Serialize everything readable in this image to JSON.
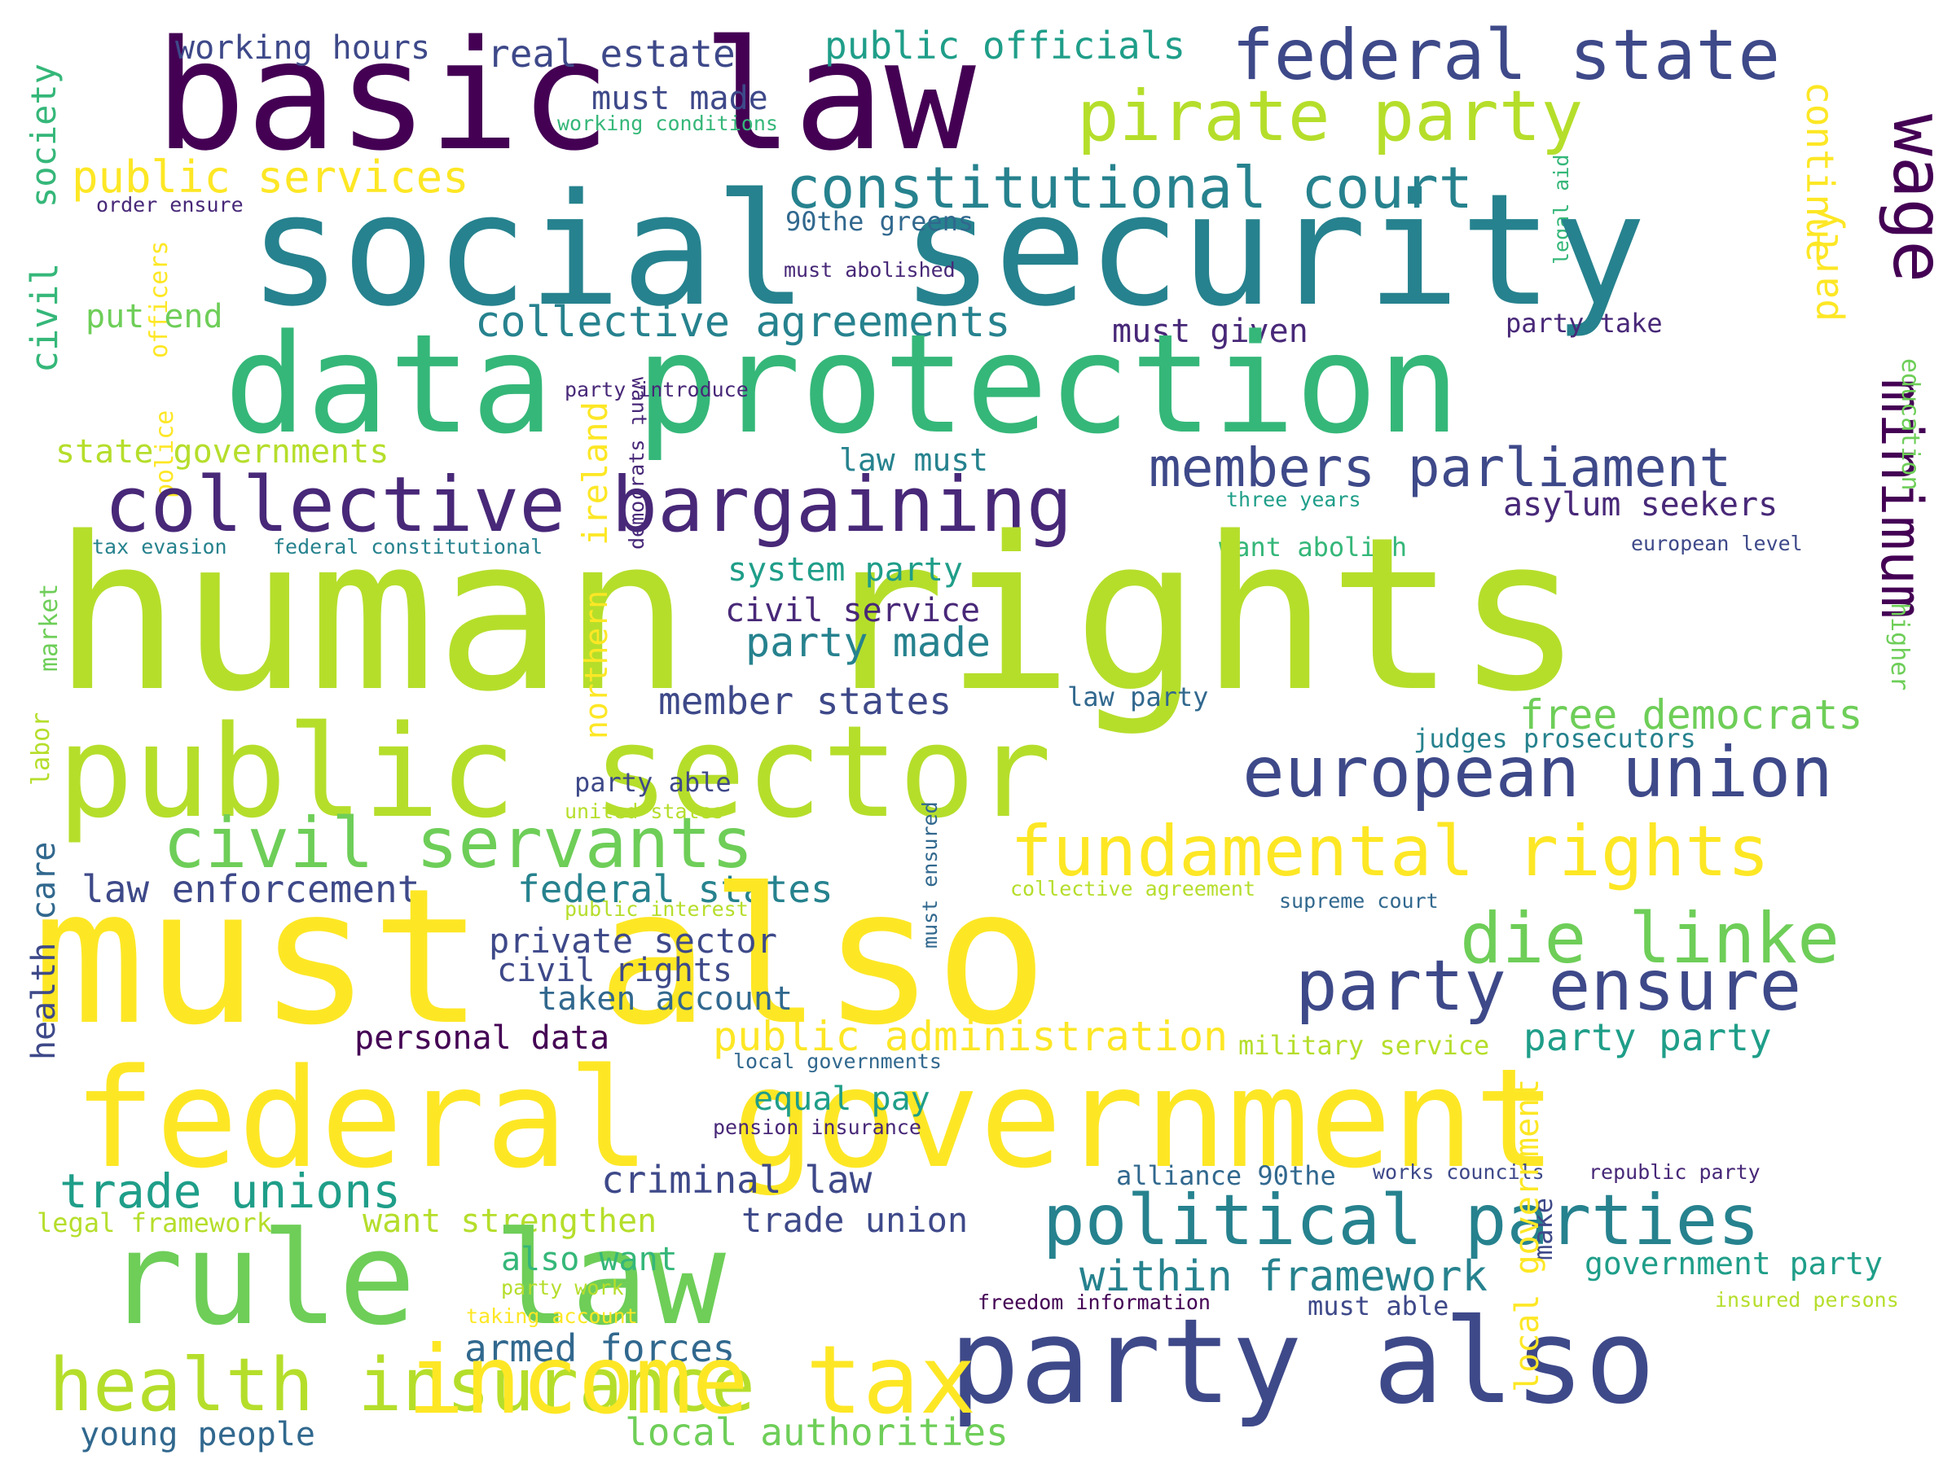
{
  "palette": [
    "#440154",
    "#482878",
    "#3e4989",
    "#31688e",
    "#26828e",
    "#1f9e89",
    "#35b779",
    "#6ece58",
    "#b5de2b",
    "#fde725"
  ],
  "words": [
    {
      "text": "basic law",
      "color": "#440154"
    },
    {
      "text": "federal state",
      "color": "#3e4989"
    },
    {
      "text": "working hours",
      "color": "#3e4989"
    },
    {
      "text": "real estate",
      "color": "#3e4989"
    },
    {
      "text": "public officials",
      "color": "#1f9e89"
    },
    {
      "text": "must made",
      "color": "#3e4989"
    },
    {
      "text": "working conditions",
      "color": "#35b779"
    },
    {
      "text": "pirate party",
      "color": "#b5de2b"
    },
    {
      "text": "wage",
      "color": "#440154"
    },
    {
      "text": "continue",
      "color": "#fde725"
    },
    {
      "text": "society",
      "color": "#35b779"
    },
    {
      "text": "public services",
      "color": "#fde725"
    },
    {
      "text": "constitutional court",
      "color": "#26828e"
    },
    {
      "text": "order ensure",
      "color": "#482878"
    },
    {
      "text": "legal aid",
      "color": "#35b779"
    },
    {
      "text": "social security",
      "color": "#26828e"
    },
    {
      "text": "90the greens",
      "color": "#31688e"
    },
    {
      "text": "officers",
      "color": "#fde725"
    },
    {
      "text": "civil",
      "color": "#35b779"
    },
    {
      "text": "must abolished",
      "color": "#482878"
    },
    {
      "text": "put end",
      "color": "#6ece58"
    },
    {
      "text": "collective agreements",
      "color": "#26828e"
    },
    {
      "text": "must given",
      "color": "#482878"
    },
    {
      "text": "party take",
      "color": "#482878"
    },
    {
      "text": "data protection",
      "color": "#35b779"
    },
    {
      "text": "party",
      "color": "#fde725"
    },
    {
      "text": "minimum",
      "color": "#440154"
    },
    {
      "text": "party introduce",
      "color": "#482878"
    },
    {
      "text": "want",
      "color": "#482878"
    },
    {
      "text": "police",
      "color": "#fde725"
    },
    {
      "text": "education",
      "color": "#6ece58"
    },
    {
      "text": "state governments",
      "color": "#b5de2b"
    },
    {
      "text": "ireland",
      "color": "#fde725"
    },
    {
      "text": "law must",
      "color": "#26828e"
    },
    {
      "text": "members parliament",
      "color": "#3e4989"
    },
    {
      "text": "democrats",
      "color": "#482878"
    },
    {
      "text": "collective bargaining",
      "color": "#482878"
    },
    {
      "text": "three years",
      "color": "#1f9e89"
    },
    {
      "text": "asylum seekers",
      "color": "#482878"
    },
    {
      "text": "tax evasion",
      "color": "#26828e"
    },
    {
      "text": "federal constitutional",
      "color": "#26828e"
    },
    {
      "text": "want abolish",
      "color": "#35b779"
    },
    {
      "text": "european level",
      "color": "#3e4989"
    },
    {
      "text": "higher",
      "color": "#6ece58"
    },
    {
      "text": "human rights",
      "color": "#b5de2b"
    },
    {
      "text": "system party",
      "color": "#1f9e89"
    },
    {
      "text": "civil service",
      "color": "#482878"
    },
    {
      "text": "market",
      "color": "#6ece58"
    },
    {
      "text": "northern",
      "color": "#fde725"
    },
    {
      "text": "party made",
      "color": "#26828e"
    },
    {
      "text": "law party",
      "color": "#31688e"
    },
    {
      "text": "member states",
      "color": "#3e4989"
    },
    {
      "text": "free democrats",
      "color": "#6ece58"
    },
    {
      "text": "public sector",
      "color": "#b5de2b"
    },
    {
      "text": "judges prosecutors",
      "color": "#26828e"
    },
    {
      "text": "european union",
      "color": "#3e4989"
    },
    {
      "text": "labor",
      "color": "#b5de2b"
    },
    {
      "text": "party able",
      "color": "#3e4989"
    },
    {
      "text": "united states",
      "color": "#b5de2b"
    },
    {
      "text": "civil servants",
      "color": "#6ece58"
    },
    {
      "text": "fundamental rights",
      "color": "#fde725"
    },
    {
      "text": "care",
      "color": "#31688e"
    },
    {
      "text": "must ensured",
      "color": "#31688e"
    },
    {
      "text": "law enforcement",
      "color": "#3e4989"
    },
    {
      "text": "federal states",
      "color": "#26828e"
    },
    {
      "text": "public interest",
      "color": "#b5de2b"
    },
    {
      "text": "collective agreement",
      "color": "#b5de2b"
    },
    {
      "text": "supreme court",
      "color": "#31688e"
    },
    {
      "text": "must also",
      "color": "#fde725"
    },
    {
      "text": "die linke",
      "color": "#6ece58"
    },
    {
      "text": "private sector",
      "color": "#3e4989"
    },
    {
      "text": "civil rights",
      "color": "#3e4989"
    },
    {
      "text": "party ensure",
      "color": "#3e4989"
    },
    {
      "text": "health",
      "color": "#3e4989"
    },
    {
      "text": "taken account",
      "color": "#31688e"
    },
    {
      "text": "personal data",
      "color": "#440154"
    },
    {
      "text": "public administration",
      "color": "#fde725"
    },
    {
      "text": "military service",
      "color": "#b5de2b"
    },
    {
      "text": "party party",
      "color": "#1f9e89"
    },
    {
      "text": "local governments",
      "color": "#31688e"
    },
    {
      "text": "federal government",
      "color": "#fde725"
    },
    {
      "text": "equal pay",
      "color": "#1f9e89"
    },
    {
      "text": "pension insurance",
      "color": "#482878"
    },
    {
      "text": "trade unions",
      "color": "#1f9e89"
    },
    {
      "text": "criminal law",
      "color": "#3e4989"
    },
    {
      "text": "alliance 90the",
      "color": "#31688e"
    },
    {
      "text": "works councils",
      "color": "#3e4989"
    },
    {
      "text": "republic party",
      "color": "#482878"
    },
    {
      "text": "legal framework",
      "color": "#b5de2b"
    },
    {
      "text": "want strengthen",
      "color": "#b5de2b"
    },
    {
      "text": "trade union",
      "color": "#3e4989"
    },
    {
      "text": "political parties",
      "color": "#26828e"
    },
    {
      "text": "make",
      "color": "#3e4989"
    },
    {
      "text": "rule law",
      "color": "#6ece58"
    },
    {
      "text": "also want",
      "color": "#35b779"
    },
    {
      "text": "party work",
      "color": "#b5de2b"
    },
    {
      "text": "within framework",
      "color": "#26828e"
    },
    {
      "text": "government party",
      "color": "#1f9e89"
    },
    {
      "text": "taking account",
      "color": "#fde725"
    },
    {
      "text": "freedom information",
      "color": "#440154"
    },
    {
      "text": "must able",
      "color": "#3e4989"
    },
    {
      "text": "insured persons",
      "color": "#b5de2b"
    },
    {
      "text": "party also",
      "color": "#3e4989"
    },
    {
      "text": "armed forces",
      "color": "#31688e"
    },
    {
      "text": "local government",
      "color": "#fde725"
    },
    {
      "text": "health insurance",
      "color": "#b5de2b"
    },
    {
      "text": "income tax",
      "color": "#fde725"
    },
    {
      "text": "young people",
      "color": "#31688e"
    },
    {
      "text": "local authorities",
      "color": "#6ece58"
    }
  ]
}
